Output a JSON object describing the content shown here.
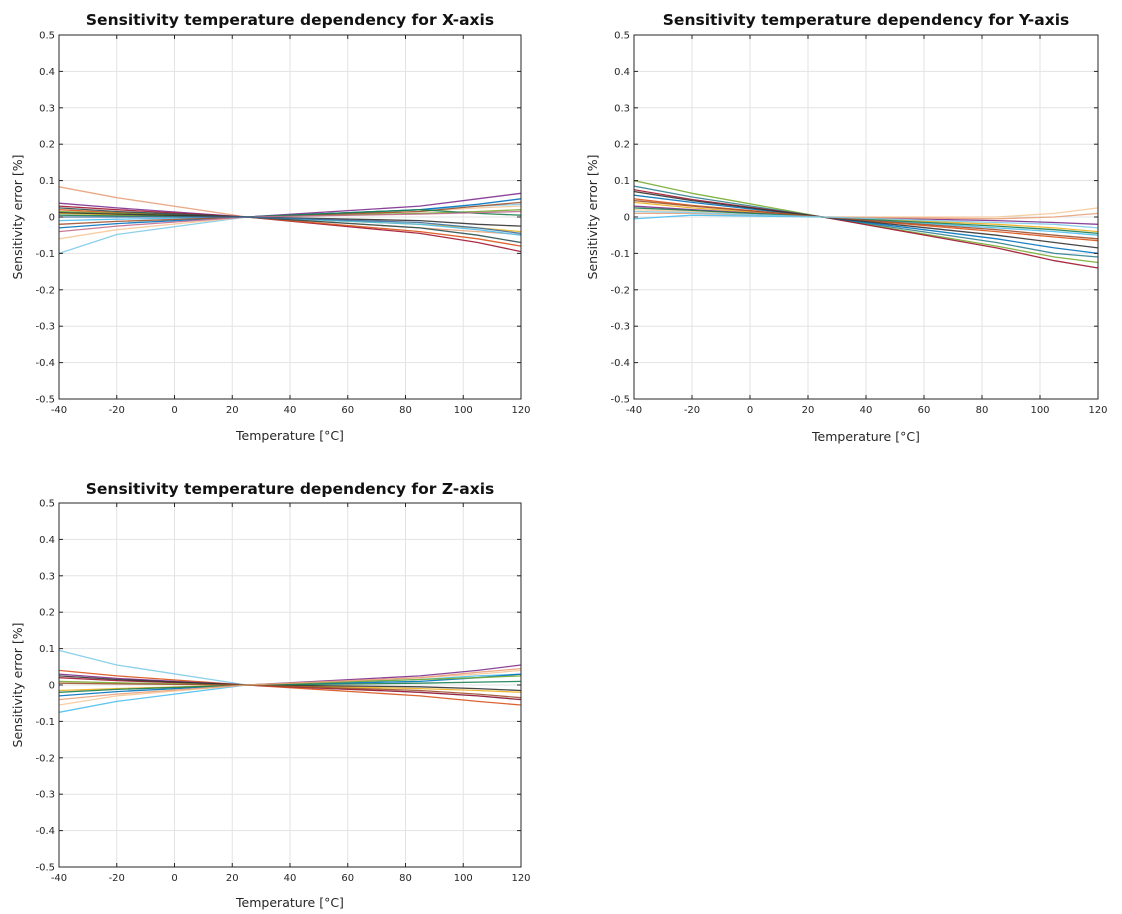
{
  "chart_data": [
    {
      "type": "line",
      "title": "Sensitivity temperature dependency for X-axis",
      "xlabel": "Temperature [°C]",
      "ylabel": "Sensitivity error [%]",
      "xlim": [
        -40,
        120
      ],
      "ylim": [
        -0.5,
        0.5
      ],
      "xticks": [
        -40,
        -20,
        0,
        20,
        40,
        60,
        80,
        100,
        120
      ],
      "yticks": [
        0.5,
        0.4,
        0.3,
        0.2,
        0.1,
        0,
        -0.1,
        -0.2,
        -0.3,
        -0.4,
        -0.5
      ],
      "xtick_labels": [
        "-40",
        "-20",
        "0",
        "20",
        "40",
        "60",
        "80",
        "100",
        "120"
      ],
      "ytick_labels": [
        "0.5",
        "0.4",
        "0.3",
        "0.2",
        "0.1",
        "0",
        "-0.1",
        "-0.2",
        "-0.3",
        "-0.4",
        "-0.5"
      ],
      "grid": true,
      "x": [
        -40,
        -20,
        25,
        85,
        105,
        120
      ],
      "series": [
        {
          "values": [
            0.083,
            0.053,
            0,
            -0.03,
            -0.04,
            -0.048
          ],
          "color": "#e8a17a"
        },
        {
          "values": [
            -0.1,
            -0.048,
            0,
            0.02,
            0.03,
            0.035
          ],
          "color": "#7ecbe8"
        },
        {
          "values": [
            -0.06,
            -0.035,
            0,
            0.015,
            0.025,
            0.03
          ],
          "color": "#f6c99a"
        },
        {
          "values": [
            0.038,
            0.025,
            0,
            0.03,
            0.05,
            0.065
          ],
          "color": "#7e2f8e"
        },
        {
          "values": [
            0.03,
            0.02,
            0,
            -0.045,
            -0.07,
            -0.095
          ],
          "color": "#a2142f"
        },
        {
          "values": [
            -0.03,
            -0.018,
            0,
            0.02,
            0.035,
            0.05
          ],
          "color": "#0072bd"
        },
        {
          "values": [
            0.02,
            0.012,
            0,
            -0.04,
            -0.06,
            -0.08
          ],
          "color": "#d95319"
        },
        {
          "values": [
            0.01,
            0.006,
            0,
            -0.02,
            -0.03,
            -0.04
          ],
          "color": "#edb120"
        },
        {
          "values": [
            0.015,
            0.01,
            0,
            0.01,
            0.015,
            0.02
          ],
          "color": "#77ac30"
        },
        {
          "values": [
            -0.01,
            -0.006,
            0,
            -0.02,
            -0.035,
            -0.05
          ],
          "color": "#4dbeee"
        },
        {
          "values": [
            0.025,
            0.015,
            0,
            -0.03,
            -0.05,
            -0.07
          ],
          "color": "#2f4f4f"
        },
        {
          "values": [
            -0.02,
            -0.012,
            0,
            0.015,
            0.03,
            0.04
          ],
          "color": "#a0522d"
        },
        {
          "values": [
            0.005,
            0.003,
            0,
            0.02,
            0.01,
            0.005
          ],
          "color": "#1b7e4f"
        },
        {
          "values": [
            0.012,
            0.008,
            0,
            -0.01,
            -0.02,
            -0.025
          ],
          "color": "#333333"
        },
        {
          "values": [
            -0.04,
            -0.025,
            0,
            0.008,
            0.012,
            0.015
          ],
          "color": "#c26d8e"
        },
        {
          "values": [
            0.0,
            0.0,
            0,
            -0.015,
            -0.03,
            -0.045
          ],
          "color": "#3c6e9e"
        }
      ]
    },
    {
      "type": "line",
      "title": "Sensitivity temperature dependency for Y-axis",
      "xlabel": "Temperature [°C]",
      "ylabel": "Sensitivity error [%]",
      "xlim": [
        -40,
        120
      ],
      "ylim": [
        -0.5,
        0.5
      ],
      "xticks": [
        -40,
        -20,
        0,
        20,
        40,
        60,
        80,
        100,
        120
      ],
      "yticks": [
        0.5,
        0.4,
        0.3,
        0.2,
        0.1,
        0,
        -0.1,
        -0.2,
        -0.3,
        -0.4,
        -0.5
      ],
      "xtick_labels": [
        "-40",
        "-20",
        "0",
        "20",
        "40",
        "60",
        "80",
        "100",
        "120"
      ],
      "ytick_labels": [
        "0.5",
        "0.4",
        "0.3",
        "0.2",
        "0.1",
        "0",
        "-0.1",
        "-0.2",
        "-0.3",
        "-0.4",
        "-0.5"
      ],
      "grid": true,
      "x": [
        -40,
        -20,
        25,
        85,
        105,
        120
      ],
      "series": [
        {
          "values": [
            0.1,
            0.065,
            0,
            -0.08,
            -0.11,
            -0.125
          ],
          "color": "#77ac30"
        },
        {
          "values": [
            0.085,
            0.055,
            0,
            -0.07,
            -0.1,
            -0.11
          ],
          "color": "#2f7f8f"
        },
        {
          "values": [
            0.075,
            0.048,
            0,
            -0.085,
            -0.12,
            -0.14
          ],
          "color": "#a2142f"
        },
        {
          "values": [
            0.06,
            0.04,
            0,
            -0.06,
            -0.085,
            -0.1
          ],
          "color": "#0072bd"
        },
        {
          "values": [
            0.05,
            0.032,
            0,
            -0.04,
            -0.055,
            -0.065
          ],
          "color": "#d95319"
        },
        {
          "values": [
            0.04,
            0.025,
            0,
            -0.02,
            -0.03,
            -0.04
          ],
          "color": "#edb120"
        },
        {
          "values": [
            0.03,
            0.02,
            0,
            -0.01,
            -0.015,
            -0.02
          ],
          "color": "#7e2f8e"
        },
        {
          "values": [
            0.02,
            0.015,
            0,
            0.0,
            0.01,
            0.025
          ],
          "color": "#f6c99a"
        },
        {
          "values": [
            0.01,
            0.01,
            0,
            -0.005,
            0.0,
            0.01
          ],
          "color": "#e8a17a"
        },
        {
          "values": [
            -0.005,
            0.005,
            0,
            -0.03,
            -0.04,
            -0.05
          ],
          "color": "#4dbeee"
        },
        {
          "values": [
            0.07,
            0.045,
            0,
            -0.05,
            -0.07,
            -0.085
          ],
          "color": "#333333"
        },
        {
          "values": [
            0.025,
            0.018,
            0,
            -0.025,
            -0.035,
            -0.045
          ],
          "color": "#1b7e4f"
        },
        {
          "values": [
            0.045,
            0.03,
            0,
            -0.035,
            -0.05,
            -0.06
          ],
          "color": "#a0522d"
        },
        {
          "values": [
            0.015,
            0.012,
            0,
            -0.015,
            -0.02,
            -0.03
          ],
          "color": "#7ecbe8"
        }
      ]
    },
    {
      "type": "line",
      "title": "Sensitivity temperature dependency for Z-axis",
      "xlabel": "Temperature [°C]",
      "ylabel": "Sensitivity error [%]",
      "xlim": [
        -40,
        120
      ],
      "ylim": [
        -0.5,
        0.5
      ],
      "xticks": [
        -40,
        -20,
        0,
        20,
        40,
        60,
        80,
        100,
        120
      ],
      "yticks": [
        0.5,
        0.4,
        0.3,
        0.2,
        0.1,
        0,
        -0.1,
        -0.2,
        -0.3,
        -0.4,
        -0.5
      ],
      "xtick_labels": [
        "-40",
        "-20",
        "0",
        "20",
        "40",
        "60",
        "80",
        "100",
        "120"
      ],
      "ytick_labels": [
        "0.5",
        "0.4",
        "0.3",
        "0.2",
        "0.1",
        "0",
        "-0.1",
        "-0.2",
        "-0.3",
        "-0.4",
        "-0.5"
      ],
      "grid": true,
      "x": [
        -40,
        -20,
        25,
        85,
        105,
        120
      ],
      "series": [
        {
          "values": [
            0.095,
            0.055,
            0,
            -0.02,
            -0.03,
            -0.04
          ],
          "color": "#7ecbe8"
        },
        {
          "values": [
            -0.075,
            -0.045,
            0,
            0.015,
            0.025,
            0.03
          ],
          "color": "#4dbeee"
        },
        {
          "values": [
            -0.055,
            -0.03,
            0,
            0.02,
            0.03,
            0.04
          ],
          "color": "#f6c99a"
        },
        {
          "values": [
            0.04,
            0.025,
            0,
            -0.03,
            -0.045,
            -0.055
          ],
          "color": "#d95319"
        },
        {
          "values": [
            0.03,
            0.018,
            0,
            0.025,
            0.04,
            0.055
          ],
          "color": "#7e2f8e"
        },
        {
          "values": [
            -0.03,
            -0.018,
            0,
            0.01,
            0.02,
            0.03
          ],
          "color": "#0072bd"
        },
        {
          "values": [
            0.02,
            0.012,
            0,
            -0.02,
            -0.03,
            -0.04
          ],
          "color": "#a2142f"
        },
        {
          "values": [
            0.01,
            0.006,
            0,
            0.015,
            0.02,
            0.025
          ],
          "color": "#77ac30"
        },
        {
          "values": [
            -0.015,
            -0.01,
            0,
            -0.01,
            -0.015,
            -0.02
          ],
          "color": "#edb120"
        },
        {
          "values": [
            0.025,
            0.015,
            0,
            -0.005,
            -0.01,
            -0.015
          ],
          "color": "#333333"
        },
        {
          "values": [
            -0.02,
            -0.012,
            0,
            0.005,
            0.008,
            0.01
          ],
          "color": "#1b7e4f"
        },
        {
          "values": [
            0.005,
            0.003,
            0,
            -0.015,
            -0.025,
            -0.035
          ],
          "color": "#a0522d"
        },
        {
          "values": [
            -0.04,
            -0.025,
            0,
            0.02,
            0.035,
            0.045
          ],
          "color": "#e8a17a"
        }
      ]
    }
  ]
}
